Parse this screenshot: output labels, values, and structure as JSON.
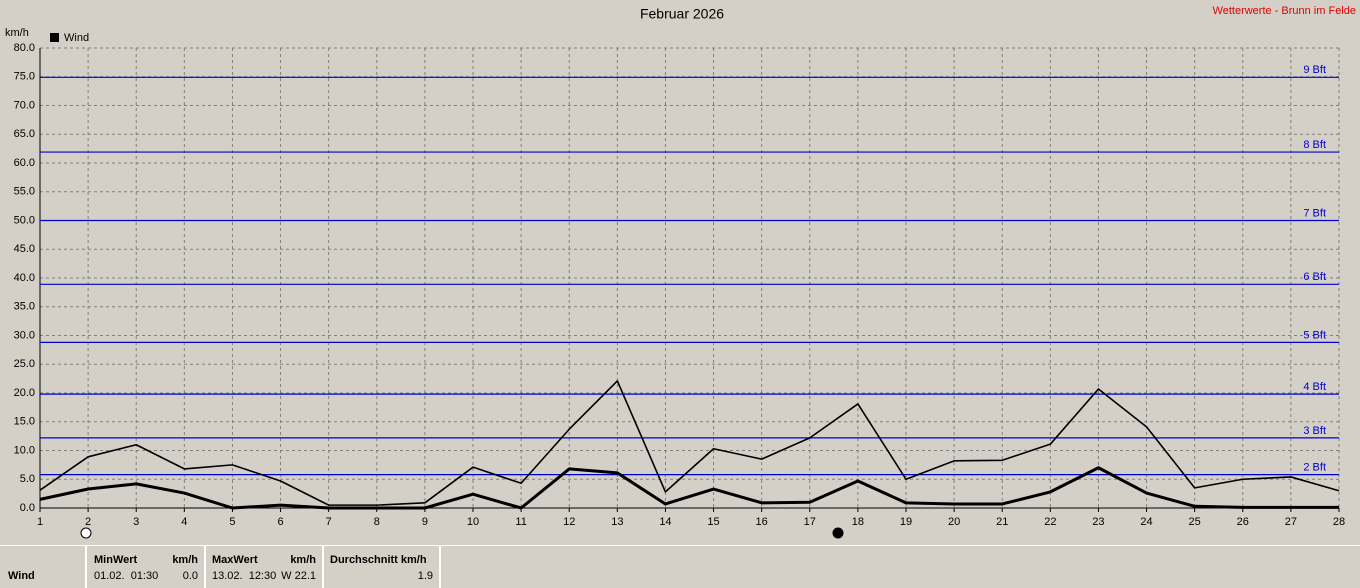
{
  "chart_data": {
    "type": "line",
    "title": "Februar 2026",
    "source": "Wetterwerte - Brunn im Felde",
    "y_label": "km/h",
    "x": [
      1,
      2,
      3,
      4,
      5,
      6,
      7,
      8,
      9,
      10,
      11,
      12,
      13,
      14,
      15,
      16,
      17,
      18,
      19,
      20,
      21,
      22,
      23,
      24,
      25,
      26,
      27,
      28
    ],
    "xlim": [
      1,
      28
    ],
    "xticks": [
      1,
      2,
      3,
      4,
      5,
      6,
      7,
      8,
      9,
      10,
      11,
      12,
      13,
      14,
      15,
      16,
      17,
      18,
      19,
      20,
      21,
      22,
      23,
      24,
      25,
      26,
      27,
      28
    ],
    "ylim": [
      0,
      80
    ],
    "yticks": [
      {
        "value": 0,
        "label": "0.0"
      },
      {
        "value": 5,
        "label": "5.0"
      },
      {
        "value": 10,
        "label": "10.0"
      },
      {
        "value": 15,
        "label": "15.0"
      },
      {
        "value": 20,
        "label": "20.0"
      },
      {
        "value": 25,
        "label": "25.0"
      },
      {
        "value": 30,
        "label": "30.0"
      },
      {
        "value": 35,
        "label": "35.0"
      },
      {
        "value": 40,
        "label": "40.0"
      },
      {
        "value": 45,
        "label": "45.0"
      },
      {
        "value": 50,
        "label": "50.0"
      },
      {
        "value": 55,
        "label": "55.0"
      },
      {
        "value": 60,
        "label": "60.0"
      },
      {
        "value": 65,
        "label": "65.0"
      },
      {
        "value": 70,
        "label": "70.0"
      },
      {
        "value": 75,
        "label": "75.0"
      },
      {
        "value": 80,
        "label": "80.0"
      }
    ],
    "grid": true,
    "series": [
      {
        "name": "Wind",
        "color": "#000000",
        "values": [
          3.1,
          8.9,
          11.0,
          6.8,
          7.5,
          4.7,
          0.5,
          0.5,
          0.9,
          7.1,
          4.3,
          13.7,
          22.1,
          2.8,
          10.3,
          8.5,
          12.2,
          18.1,
          5.0,
          8.2,
          8.3,
          11.1,
          20.7,
          14.1,
          3.5,
          5.0,
          5.4,
          3.0
        ]
      },
      {
        "color": "#000000",
        "values": [
          1.5,
          3.3,
          4.2,
          2.6,
          0,
          0.5,
          0,
          0,
          0,
          2.4,
          0,
          6.8,
          6.1,
          0.7,
          3.3,
          0.9,
          1.0,
          4.7,
          0.9,
          0.7,
          0.7,
          2.8,
          7.0,
          2.6,
          0.3,
          0.1,
          0.1,
          0.1
        ]
      }
    ],
    "reference_lines": {
      "color": "#0000cc",
      "lines": [
        {
          "value": 5.8,
          "label": "2 Bft"
        },
        {
          "value": 12.2,
          "label": "3 Bft"
        },
        {
          "value": 19.8,
          "label": "4 Bft"
        },
        {
          "value": 28.8,
          "label": "5 Bft"
        },
        {
          "value": 38.9,
          "label": "6 Bft"
        },
        {
          "value": 50.0,
          "label": "7 Bft"
        },
        {
          "value": 61.9,
          "label": "8 Bft"
        },
        {
          "value": 74.9,
          "label": "9 Bft"
        }
      ]
    }
  },
  "footer": {
    "label": "Wind",
    "min": {
      "title": "MinWert",
      "unit": "km/h",
      "time": "01.02.  01:30",
      "value": "0.0"
    },
    "max": {
      "title": "MaxWert",
      "unit": "km/h",
      "time": "13.02.  12:30",
      "value": "W 22.1"
    },
    "avg": {
      "title": "Durchschnitt km/h",
      "value": "1.9"
    }
  }
}
